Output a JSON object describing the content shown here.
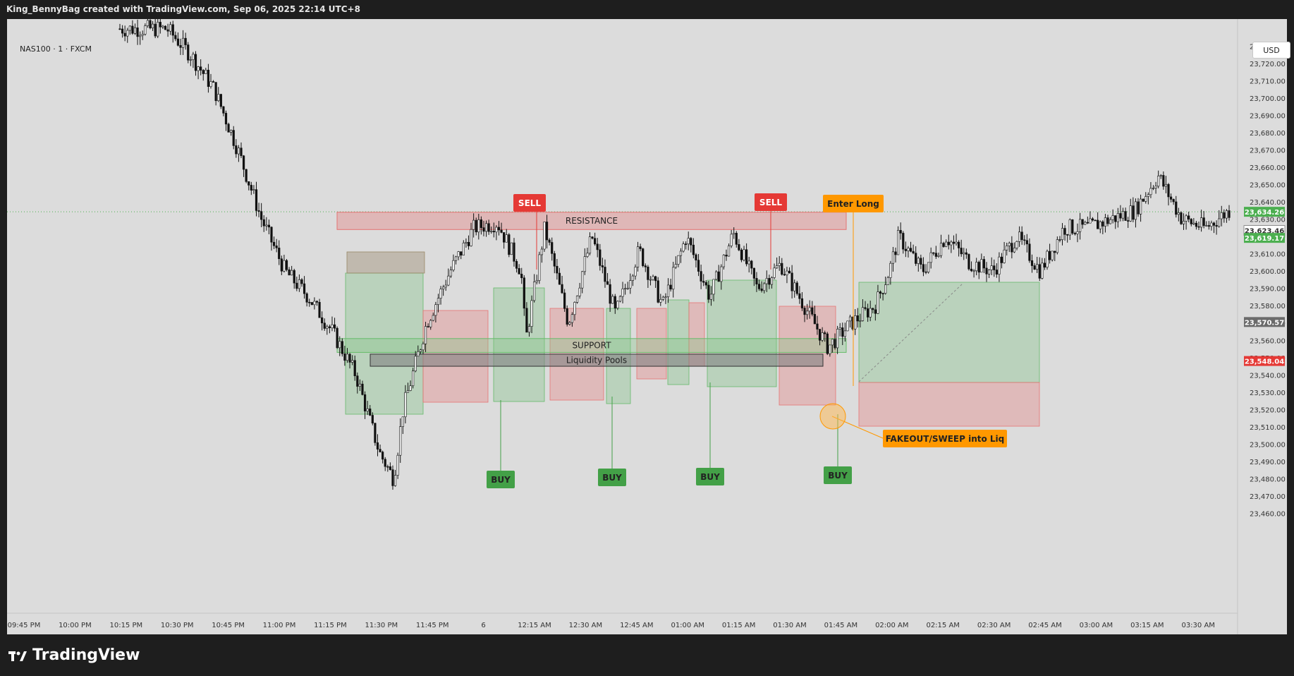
{
  "header": {
    "attribution": "King_BennyBag created with TradingView.com, Sep 06, 2025 22:14 UTC+8"
  },
  "symbol": {
    "label": "NAS100 · 1 · FXCM"
  },
  "currency": "USD",
  "brand": {
    "name": "TradingView"
  },
  "chart_data": {
    "type": "line",
    "title": "",
    "xlabel": "",
    "ylabel": "",
    "ylim": [
      23455,
      23745
    ],
    "y_ticks": [
      23460,
      23470,
      23480,
      23490,
      23500,
      23510,
      23520,
      23530,
      23540,
      23550,
      23560,
      23570,
      23580,
      23590,
      23600,
      23610,
      23620,
      23630,
      23640,
      23650,
      23660,
      23670,
      23680,
      23690,
      23700,
      23710,
      23720,
      23730
    ],
    "x_ticks": [
      "09:45 PM",
      "10:00 PM",
      "10:15 PM",
      "10:30 PM",
      "10:45 PM",
      "11:00 PM",
      "11:15 PM",
      "11:30 PM",
      "11:45 PM",
      "6",
      "12:15 AM",
      "12:30 AM",
      "12:45 AM",
      "01:00 AM",
      "01:15 AM",
      "01:30 AM",
      "01:45 AM",
      "02:00 AM",
      "02:15 AM",
      "02:30 AM",
      "02:45 AM",
      "03:00 AM",
      "03:15 AM",
      "03:30 AM"
    ],
    "series": [
      {
        "x": [
          0,
          1,
          1.5,
          2,
          2.5,
          3,
          3.5,
          4,
          4.5,
          5,
          5.5,
          5.8,
          6,
          6.5,
          7,
          7.5,
          8,
          8.5,
          8.6,
          9,
          9.5,
          10,
          10.5,
          11,
          11.5,
          12,
          12.5,
          13,
          13.5,
          14,
          14.5,
          15,
          15.5,
          16,
          16.3,
          16.5,
          17,
          17.5,
          18,
          18.5,
          19,
          19.5,
          20,
          20.5,
          21,
          21.5,
          22,
          22.5,
          23,
          23.5
        ],
        "values": [
          23740,
          23740,
          23725,
          23705,
          23670,
          23630,
          23600,
          23585,
          23565,
          23540,
          23495,
          23480,
          23520,
          23570,
          23600,
          23625,
          23628,
          23600,
          23560,
          23625,
          23570,
          23620,
          23575,
          23612,
          23580,
          23620,
          23585,
          23622,
          23590,
          23604,
          23580,
          23556,
          23570,
          23580,
          23600,
          23620,
          23600,
          23620,
          23605,
          23600,
          23620,
          23600,
          23625,
          23625,
          23630,
          23635,
          23655,
          23630,
          23625,
          23635
        ]
      }
    ],
    "zones": [
      {
        "label": "RESISTANCE",
        "low": 23624,
        "high": 23634
      },
      {
        "label": "SUPPORT",
        "low": 23553,
        "high": 23561
      },
      {
        "label": "Liquidity Pools",
        "low": 23545,
        "high": 23552
      }
    ],
    "signals": [
      {
        "label": "SELL",
        "price": 23624
      },
      {
        "label": "SELL",
        "price": 23624
      },
      {
        "label": "Enter Long",
        "price": 23570
      },
      {
        "label": "BUY",
        "price": 23565
      },
      {
        "label": "BUY",
        "price": 23568
      },
      {
        "label": "BUY",
        "price": 23570
      },
      {
        "label": "BUY",
        "price": 23552
      },
      {
        "label": "FAKEOUT/SWEEP into Liq",
        "price": 23548
      }
    ],
    "price_markers": [
      {
        "label": "23,634.26",
        "value": 23634.26,
        "color": "#4caf50"
      },
      {
        "label": "23,623.46",
        "value": 23623.46,
        "color": "#ffffff"
      },
      {
        "label": "23,619.17",
        "value": 23619.17,
        "color": "#4caf50"
      },
      {
        "label": "23,570.57",
        "value": 23570.57,
        "color": "#6b6b6b"
      },
      {
        "label": "23,548.04",
        "value": 23548.04,
        "color": "#e53935"
      }
    ],
    "grid": false,
    "legend": "none"
  }
}
